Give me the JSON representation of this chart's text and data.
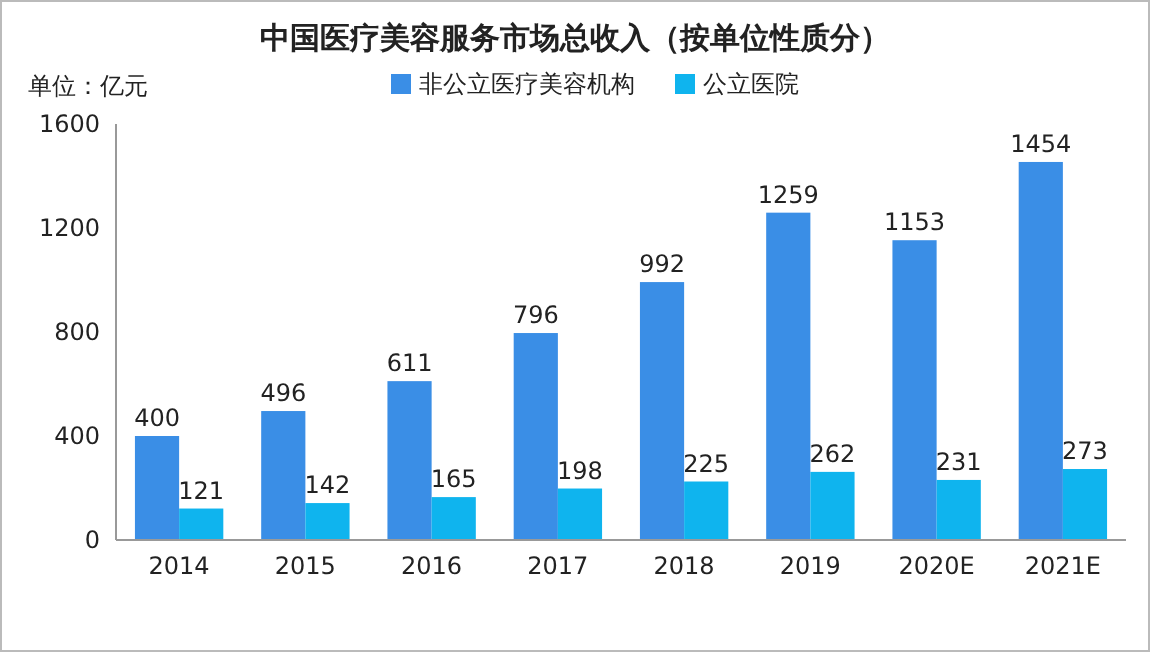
{
  "chart_data": {
    "type": "bar",
    "title": "中国医疗美容服务市场总收入（按单位性质分）",
    "ylabel": "单位：亿元",
    "categories": [
      "2014",
      "2015",
      "2016",
      "2017",
      "2018",
      "2019",
      "2020E",
      "2021E"
    ],
    "series": [
      {
        "name": "非公立医疗美容机构",
        "color": "#3a8ee6",
        "values": [
          400,
          496,
          611,
          796,
          992,
          1259,
          1153,
          1454
        ]
      },
      {
        "name": "公立医院",
        "color": "#0fb4ee",
        "values": [
          121,
          142,
          165,
          198,
          225,
          262,
          231,
          273
        ]
      }
    ],
    "ylim": [
      0,
      1600
    ],
    "yticks": [
      0,
      400,
      800,
      1200,
      1600
    ],
    "data_labels": true,
    "legend": "top",
    "grid": false
  }
}
